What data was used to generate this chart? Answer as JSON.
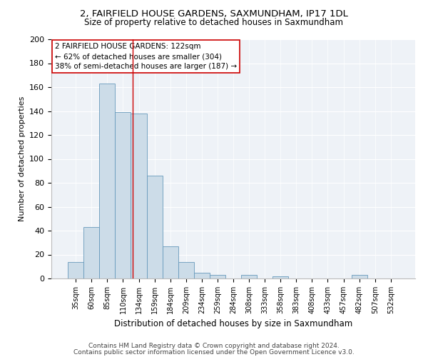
{
  "title1": "2, FAIRFIELD HOUSE GARDENS, SAXMUNDHAM, IP17 1DL",
  "title2": "Size of property relative to detached houses in Saxmundham",
  "xlabel": "Distribution of detached houses by size in Saxmundham",
  "ylabel": "Number of detached properties",
  "bar_color": "#ccdce8",
  "bar_edge_color": "#6699bb",
  "categories": [
    "35sqm",
    "60sqm",
    "85sqm",
    "110sqm",
    "134sqm",
    "159sqm",
    "184sqm",
    "209sqm",
    "234sqm",
    "259sqm",
    "284sqm",
    "308sqm",
    "333sqm",
    "358sqm",
    "383sqm",
    "408sqm",
    "433sqm",
    "457sqm",
    "482sqm",
    "507sqm",
    "532sqm"
  ],
  "values": [
    14,
    43,
    163,
    139,
    138,
    86,
    27,
    14,
    5,
    3,
    0,
    3,
    0,
    2,
    0,
    0,
    0,
    0,
    3,
    0,
    0
  ],
  "ylim": [
    0,
    200
  ],
  "yticks": [
    0,
    20,
    40,
    60,
    80,
    100,
    120,
    140,
    160,
    180,
    200
  ],
  "vline_x": 3.62,
  "vline_color": "#cc0000",
  "annotation_text": "2 FAIRFIELD HOUSE GARDENS: 122sqm\n← 62% of detached houses are smaller (304)\n38% of semi-detached houses are larger (187) →",
  "annotation_box_color": "#ffffff",
  "annotation_box_edge": "#cc0000",
  "footer1": "Contains HM Land Registry data © Crown copyright and database right 2024.",
  "footer2": "Contains public sector information licensed under the Open Government Licence v3.0.",
  "bg_color": "#eef2f7"
}
